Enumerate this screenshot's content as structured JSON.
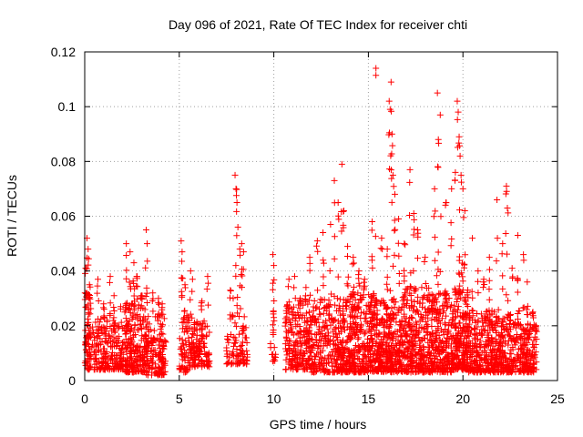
{
  "chart_data": {
    "type": "scatter",
    "title": "Day 096 of 2021, Rate Of TEC Index for receiver chti",
    "xlabel": "GPS time / hours",
    "ylabel": "ROTI / TECUs",
    "xlim": [
      0,
      25
    ],
    "ylim": [
      0,
      0.12
    ],
    "xticks": [
      0,
      5,
      10,
      15,
      20,
      25
    ],
    "yticks": [
      0,
      0.02,
      0.04,
      0.06,
      0.08,
      0.1,
      0.12
    ],
    "xtick_labels": [
      "0",
      "5",
      "10",
      "15",
      "20",
      "25"
    ],
    "ytick_labels": [
      "0",
      "0.02",
      "0.04",
      "0.06",
      "0.08",
      "0.1",
      "0.12"
    ],
    "grid": true,
    "marker": "+",
    "color": "#ff0000",
    "series": [
      {
        "name": "ROTI",
        "clusters": [
          {
            "x": [
              0.0,
              0.35
            ],
            "low": 0.004,
            "high": 0.03,
            "n": 70,
            "spikes": [
              [
                0.05,
                0.041
              ],
              [
                0.12,
                0.052
              ],
              [
                0.18,
                0.048
              ],
              [
                0.25,
                0.035
              ],
              [
                0.1,
                0.032
              ]
            ]
          },
          {
            "x": [
              0.4,
              1.7
            ],
            "low": 0.004,
            "high": 0.024,
            "n": 160,
            "spikes": [
              [
                0.7,
                0.037
              ],
              [
                1.0,
                0.028
              ],
              [
                1.35,
                0.038
              ],
              [
                1.55,
                0.031
              ]
            ]
          },
          {
            "x": [
              1.7,
              2.1
            ],
            "low": 0.004,
            "high": 0.02,
            "n": 50,
            "spikes": [
              [
                1.9,
                0.027
              ]
            ]
          },
          {
            "x": [
              2.1,
              3.2
            ],
            "low": 0.003,
            "high": 0.03,
            "n": 200,
            "spikes": [
              [
                2.2,
                0.05
              ],
              [
                2.4,
                0.047
              ],
              [
                2.6,
                0.043
              ],
              [
                2.75,
                0.038
              ],
              [
                3.0,
                0.031
              ]
            ]
          },
          {
            "x": [
              3.2,
              4.3
            ],
            "low": 0.002,
            "high": 0.024,
            "n": 150,
            "spikes": [
              [
                3.25,
                0.055
              ],
              [
                3.3,
                0.05
              ],
              [
                3.6,
                0.032
              ],
              [
                3.9,
                0.03
              ],
              [
                4.1,
                0.028
              ]
            ]
          },
          {
            "x": [
              5.0,
              5.5
            ],
            "low": 0.003,
            "high": 0.024,
            "n": 60,
            "spikes": [
              [
                5.1,
                0.051
              ],
              [
                5.15,
                0.047
              ],
              [
                5.3,
                0.035
              ]
            ]
          },
          {
            "x": [
              5.5,
              6.6
            ],
            "low": 0.005,
            "high": 0.022,
            "n": 130,
            "spikes": [
              [
                5.6,
                0.04
              ],
              [
                5.7,
                0.037
              ],
              [
                6.2,
                0.029
              ],
              [
                6.5,
                0.038
              ]
            ]
          },
          {
            "x": [
              7.5,
              8.0
            ],
            "low": 0.006,
            "high": 0.017,
            "n": 30,
            "spikes": [
              [
                7.7,
                0.033
              ],
              [
                7.85,
                0.03
              ]
            ]
          },
          {
            "x": [
              8.0,
              8.6
            ],
            "low": 0.006,
            "high": 0.02,
            "n": 50,
            "spikes": [
              [
                7.95,
                0.075
              ],
              [
                8.0,
                0.07
              ],
              [
                8.05,
                0.065
              ],
              [
                8.1,
                0.056
              ],
              [
                8.2,
                0.048
              ],
              [
                8.3,
                0.05
              ],
              [
                8.4,
                0.047
              ]
            ]
          },
          {
            "x": [
              9.8,
              10.1
            ],
            "low": 0.007,
            "high": 0.014,
            "n": 12,
            "spikes": [
              [
                9.95,
                0.046
              ],
              [
                10.0,
                0.042
              ],
              [
                10.0,
                0.023
              ]
            ]
          },
          {
            "x": [
              10.6,
              12.0
            ],
            "low": 0.004,
            "high": 0.028,
            "n": 210,
            "spikes": [
              [
                10.8,
                0.037
              ],
              [
                11.1,
                0.038
              ],
              [
                11.4,
                0.03
              ],
              [
                11.7,
                0.034
              ],
              [
                11.9,
                0.045
              ]
            ]
          },
          {
            "x": [
              12.0,
              14.0
            ],
            "low": 0.003,
            "high": 0.03,
            "n": 320,
            "spikes": [
              [
                12.3,
                0.051
              ],
              [
                12.6,
                0.054
              ],
              [
                13.0,
                0.057
              ],
              [
                13.2,
                0.073
              ],
              [
                13.4,
                0.065
              ],
              [
                13.6,
                0.079
              ],
              [
                13.7,
                0.062
              ],
              [
                13.9,
                0.049
              ]
            ]
          },
          {
            "x": [
              14.0,
              15.4
            ],
            "low": 0.003,
            "high": 0.032,
            "n": 300,
            "spikes": [
              [
                14.2,
                0.045
              ],
              [
                14.5,
                0.04
              ],
              [
                14.8,
                0.037
              ],
              [
                15.2,
                0.058
              ],
              [
                15.4,
                0.114
              ]
            ]
          },
          {
            "x": [
              15.4,
              16.7
            ],
            "low": 0.003,
            "high": 0.03,
            "n": 280,
            "spikes": [
              [
                15.7,
                0.052
              ],
              [
                16.0,
                0.048
              ],
              [
                16.1,
                0.102
              ],
              [
                16.15,
                0.099
              ],
              [
                16.2,
                0.109
              ],
              [
                16.25,
                0.09
              ],
              [
                16.3,
                0.075
              ],
              [
                16.4,
                0.068
              ],
              [
                16.6,
                0.059
              ]
            ]
          },
          {
            "x": [
              16.7,
              18.2
            ],
            "low": 0.003,
            "high": 0.034,
            "n": 300,
            "spikes": [
              [
                16.9,
                0.05
              ],
              [
                17.2,
                0.077
              ],
              [
                17.4,
                0.061
              ],
              [
                17.6,
                0.055
              ],
              [
                18.0,
                0.045
              ]
            ]
          },
          {
            "x": [
              18.2,
              19.5
            ],
            "low": 0.003,
            "high": 0.032,
            "n": 260,
            "spikes": [
              [
                18.5,
                0.07
              ],
              [
                18.65,
                0.105
              ],
              [
                18.7,
                0.088
              ],
              [
                18.8,
                0.097
              ],
              [
                19.1,
                0.065
              ],
              [
                19.4,
                0.07
              ]
            ]
          },
          {
            "x": [
              19.5,
              20.3
            ],
            "low": 0.004,
            "high": 0.034,
            "n": 200,
            "spikes": [
              [
                19.6,
                0.076
              ],
              [
                19.7,
                0.102
              ],
              [
                19.75,
                0.098
              ],
              [
                19.8,
                0.089
              ],
              [
                19.85,
                0.082
              ],
              [
                19.9,
                0.075
              ],
              [
                20.0,
                0.07
              ],
              [
                20.1,
                0.062
              ]
            ]
          },
          {
            "x": [
              20.3,
              21.6
            ],
            "low": 0.003,
            "high": 0.026,
            "n": 230,
            "spikes": [
              [
                20.5,
                0.052
              ],
              [
                20.8,
                0.04
              ],
              [
                21.1,
                0.037
              ],
              [
                21.4,
                0.045
              ]
            ]
          },
          {
            "x": [
              21.6,
              23.0
            ],
            "low": 0.003,
            "high": 0.026,
            "n": 230,
            "spikes": [
              [
                21.8,
                0.066
              ],
              [
                22.1,
                0.05
              ],
              [
                22.3,
                0.071
              ],
              [
                22.35,
                0.063
              ],
              [
                22.6,
                0.041
              ],
              [
                22.9,
                0.053
              ]
            ]
          },
          {
            "x": [
              23.0,
              23.9
            ],
            "low": 0.003,
            "high": 0.021,
            "n": 150,
            "spikes": [
              [
                23.2,
                0.046
              ],
              [
                23.4,
                0.036
              ],
              [
                23.7,
                0.025
              ],
              [
                23.85,
                0.018
              ]
            ]
          }
        ]
      }
    ]
  }
}
